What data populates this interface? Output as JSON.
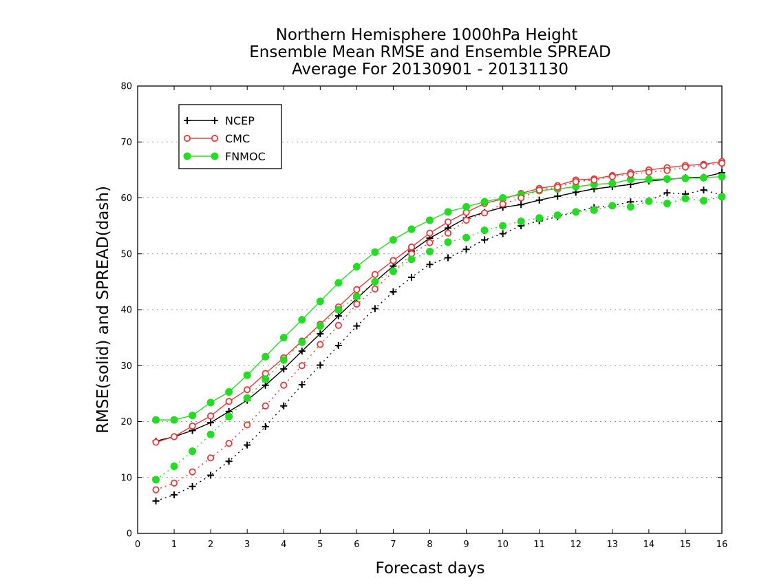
{
  "chart_data": {
    "type": "line",
    "title": [
      "Northern Hemisphere 1000hPa Height",
      "Ensemble Mean RMSE and Ensemble SPREAD",
      "Average For 20130901 - 20131130"
    ],
    "xlabel": "Forecast days",
    "ylabel": "RMSE(solid) and SPREAD(dash)",
    "xlim": [
      0,
      16
    ],
    "ylim": [
      0,
      80
    ],
    "xticks": [
      0,
      1,
      2,
      3,
      4,
      5,
      6,
      7,
      8,
      9,
      10,
      11,
      12,
      13,
      14,
      15,
      16
    ],
    "yticks": [
      0,
      10,
      20,
      30,
      40,
      50,
      60,
      70,
      80
    ],
    "grid": "horizontal dotted",
    "legend_position": "top-left",
    "x": [
      0.5,
      1,
      1.5,
      2,
      2.5,
      3,
      3.5,
      4,
      4.5,
      5,
      5.5,
      6,
      6.5,
      7,
      7.5,
      8,
      8.5,
      9,
      9.5,
      10,
      10.5,
      11,
      11.5,
      12,
      12.5,
      13,
      13.5,
      14,
      14.5,
      15,
      15.5,
      16
    ],
    "series": [
      {
        "name": "NCEP",
        "metric": "RMSE",
        "line_style": "solid",
        "marker": "plus",
        "color": "#000000",
        "values": [
          16.5,
          17.3,
          18.4,
          19.8,
          21.8,
          23.8,
          26.5,
          29.4,
          32.6,
          35.7,
          38.9,
          42.0,
          45.0,
          47.8,
          50.5,
          52.8,
          54.6,
          56.4,
          57.4,
          58.3,
          58.8,
          59.6,
          60.3,
          61.0,
          61.6,
          62.0,
          62.4,
          63.0,
          63.3,
          63.6,
          63.7,
          64.5
        ]
      },
      {
        "name": "CMC",
        "metric": "RMSE",
        "line_style": "solid",
        "marker": "open-circle",
        "color": "#e8383a",
        "values": [
          16.3,
          17.3,
          19.2,
          21.0,
          23.6,
          25.7,
          28.6,
          31.4,
          34.4,
          37.4,
          40.5,
          43.6,
          46.3,
          48.8,
          51.2,
          53.7,
          55.7,
          57.4,
          59.0,
          59.8,
          60.8,
          61.7,
          62.2,
          63.2,
          63.4,
          64.0,
          64.5,
          65.0,
          65.4,
          65.8,
          66.0,
          66.5
        ]
      },
      {
        "name": "FNMOC",
        "metric": "RMSE",
        "line_style": "solid",
        "marker": "filled-circle",
        "color": "#22dd22",
        "values": [
          20.3,
          20.3,
          21.1,
          23.4,
          25.3,
          28.3,
          31.6,
          35.0,
          38.2,
          41.5,
          44.8,
          47.7,
          50.3,
          52.5,
          54.4,
          56.0,
          57.5,
          58.4,
          59.3,
          60.0,
          60.6,
          61.3,
          61.6,
          62.0,
          62.4,
          62.6,
          63.3,
          63.3,
          63.4,
          63.5,
          63.6,
          63.8
        ]
      },
      {
        "name": "NCEP",
        "metric": "SPREAD",
        "line_style": "dash",
        "marker": "plus",
        "color": "#000000",
        "values": [
          5.8,
          6.9,
          8.4,
          10.4,
          12.9,
          15.8,
          19.1,
          22.8,
          26.6,
          30.1,
          33.6,
          37.1,
          40.2,
          43.2,
          45.8,
          48.1,
          49.3,
          50.8,
          52.5,
          53.6,
          55.0,
          55.9,
          56.6,
          57.5,
          58.3,
          58.6,
          59.3,
          59.5,
          60.9,
          60.7,
          61.4,
          60.5
        ]
      },
      {
        "name": "CMC",
        "metric": "SPREAD",
        "line_style": "dash",
        "marker": "open-circle",
        "color": "#e8383a",
        "values": [
          7.8,
          9.0,
          11.0,
          13.5,
          16.1,
          19.4,
          22.8,
          26.5,
          30.0,
          33.8,
          37.2,
          41.0,
          43.7,
          46.8,
          50.0,
          52.0,
          53.7,
          56.0,
          57.3,
          58.9,
          60.0,
          61.4,
          61.9,
          62.9,
          63.2,
          63.8,
          64.2,
          64.6,
          64.9,
          65.5,
          65.8,
          66.2
        ]
      },
      {
        "name": "FNMOC",
        "metric": "SPREAD",
        "line_style": "dash",
        "marker": "filled-circle",
        "color": "#22dd22",
        "values": [
          9.6,
          12.0,
          14.7,
          17.7,
          20.9,
          24.2,
          27.6,
          31.0,
          34.2,
          37.1,
          40.0,
          42.4,
          45.0,
          46.9,
          49.0,
          50.4,
          52.1,
          52.9,
          54.2,
          55.0,
          55.8,
          56.4,
          56.9,
          57.5,
          57.8,
          58.6,
          58.4,
          59.4,
          59.0,
          59.9,
          59.5,
          60.2
        ]
      }
    ]
  }
}
